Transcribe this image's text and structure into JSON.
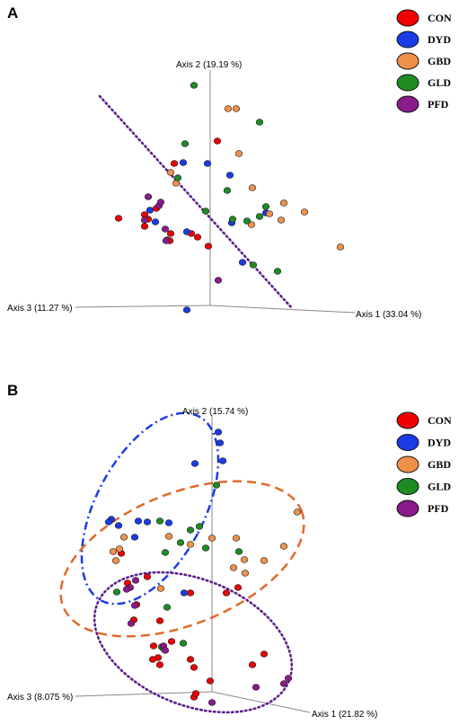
{
  "legend": [
    {
      "label": "CON",
      "color": "#f00000"
    },
    {
      "label": "DYD",
      "color": "#1a3be6"
    },
    {
      "label": "GBD",
      "color": "#f0914a"
    },
    {
      "label": "GLD",
      "color": "#1e8c23"
    },
    {
      "label": "PFD",
      "color": "#8b1a8b"
    }
  ],
  "chart_data": [
    {
      "panel": "A",
      "type": "scatter",
      "projection": "3d",
      "axes": {
        "axis1": "Axis 1 (33.04 %)",
        "axis2": "Axis 2 (19.19 %)",
        "axis3": "Axis 3 (11.27 %)"
      },
      "units": "projected plot units (x right, y up, origin at axes intersection)",
      "series": [
        {
          "name": "CON",
          "color": "#f00000",
          "points": [
            [
              -40,
              158
            ],
            [
              8,
              183
            ],
            [
              -102,
              97
            ],
            [
              -69,
              96
            ],
            [
              -60,
              108
            ],
            [
              -73,
              101
            ],
            [
              -73,
              88
            ],
            [
              -44,
              80
            ],
            [
              -48,
              73
            ],
            [
              -45,
              72
            ],
            [
              -21,
              80
            ],
            [
              -14,
              76
            ],
            [
              -2,
              66
            ]
          ]
        },
        {
          "name": "DYD",
          "color": "#1a3be6",
          "points": [
            [
              -30,
              159
            ],
            [
              -3,
              158
            ],
            [
              22,
              145
            ],
            [
              62,
              103
            ],
            [
              -26,
              82
            ],
            [
              -67,
              106
            ],
            [
              24,
              92
            ],
            [
              -61,
              93
            ],
            [
              36,
              48
            ],
            [
              -26,
              -5
            ]
          ]
        },
        {
          "name": "GBD",
          "color": "#f0914a",
          "points": [
            [
              20,
              219
            ],
            [
              29,
              219
            ],
            [
              -44,
              148
            ],
            [
              -38,
              136
            ],
            [
              32,
              169
            ],
            [
              47,
              131
            ],
            [
              82,
              114
            ],
            [
              66,
              102
            ],
            [
              46,
              90
            ],
            [
              105,
              104
            ],
            [
              79,
              95
            ],
            [
              145,
              65
            ]
          ]
        },
        {
          "name": "GLD",
          "color": "#1e8c23",
          "points": [
            [
              -18,
              245
            ],
            [
              55,
              204
            ],
            [
              -28,
              180
            ],
            [
              19,
              128
            ],
            [
              -36,
              142
            ],
            [
              -5,
              105
            ],
            [
              62,
              110
            ],
            [
              55,
              99
            ],
            [
              41,
              94
            ],
            [
              25,
              96
            ],
            [
              48,
              45
            ],
            [
              75,
              38
            ]
          ]
        },
        {
          "name": "PFD",
          "color": "#8b1a8b",
          "points": [
            [
              -69,
              121
            ],
            [
              -57,
              111
            ],
            [
              -55,
              115
            ],
            [
              -73,
              95
            ],
            [
              -50,
              85
            ],
            [
              -49,
              72
            ],
            [
              9,
              28
            ]
          ]
        }
      ],
      "separator_line": "dotted",
      "separator_color": "#5c1e8c"
    },
    {
      "panel": "B",
      "type": "scatter",
      "projection": "3d",
      "axes": {
        "axis1": "Axis 1 (21.82 %)",
        "axis2": "Axis 2 (15.74 %)",
        "axis3": "Axis 3 (8.075 %)"
      },
      "units": "projected plot units (x right, y up, origin at axes intersection)",
      "series": [
        {
          "name": "CON",
          "color": "#f00000",
          "points": [
            [
              -101,
              154
            ],
            [
              -72,
              128
            ],
            [
              -94,
              121
            ],
            [
              -84,
              97
            ],
            [
              -87,
              80
            ],
            [
              -24,
              110
            ],
            [
              -58,
              79
            ],
            [
              -45,
              56
            ],
            [
              -65,
              51
            ],
            [
              -60,
              38
            ],
            [
              -66,
              36
            ],
            [
              -58,
              30
            ],
            [
              -24,
              36
            ],
            [
              -20,
              27
            ],
            [
              -2,
              12
            ],
            [
              -20,
              -6
            ],
            [
              58,
              42
            ],
            [
              45,
              30
            ],
            [
              16,
              110
            ],
            [
              29,
              116
            ],
            [
              -18,
              -2
            ]
          ]
        },
        {
          "name": "DYD",
          "color": "#1a3be6",
          "points": [
            [
              7,
              289
            ],
            [
              9,
              277
            ],
            [
              12,
              257
            ],
            [
              -19,
              254
            ],
            [
              -112,
              192
            ],
            [
              -115,
              189
            ],
            [
              -104,
              185
            ],
            [
              -82,
              190
            ],
            [
              -72,
              189
            ],
            [
              -86,
              172
            ],
            [
              -48,
              188
            ],
            [
              -31,
              110
            ]
          ]
        },
        {
          "name": "GBD",
          "color": "#f0914a",
          "points": [
            [
              95,
              200
            ],
            [
              80,
              162
            ],
            [
              -48,
              173
            ],
            [
              -98,
              172
            ],
            [
              -103,
              159
            ],
            [
              -110,
              156
            ],
            [
              -107,
              146
            ],
            [
              -24,
              164
            ],
            [
              0,
              171
            ],
            [
              27,
              171
            ],
            [
              36,
              147
            ],
            [
              -57,
              115
            ],
            [
              24,
              138
            ],
            [
              58,
              146
            ],
            [
              37,
              132
            ]
          ]
        },
        {
          "name": "GLD",
          "color": "#1e8c23",
          "points": [
            [
              5,
              230
            ],
            [
              -58,
              190
            ],
            [
              -35,
              166
            ],
            [
              -24,
              180
            ],
            [
              -14,
              184
            ],
            [
              -52,
              155
            ],
            [
              -7,
              160
            ],
            [
              -32,
              54
            ],
            [
              -50,
              94
            ],
            [
              -106,
              111
            ],
            [
              -56,
              50
            ],
            [
              -54,
              48
            ],
            [
              30,
              156
            ]
          ]
        },
        {
          "name": "PFD",
          "color": "#8b1a8b",
          "points": [
            [
              -91,
              116
            ],
            [
              -95,
              114
            ],
            [
              -86,
              96
            ],
            [
              -90,
              76
            ],
            [
              -54,
              51
            ],
            [
              -52,
              46
            ],
            [
              0,
              -12
            ],
            [
              49,
              5
            ],
            [
              80,
              9
            ],
            [
              85,
              15
            ],
            [
              -85,
              124
            ]
          ]
        }
      ],
      "ellipses": [
        {
          "group": "DYD",
          "style": "dash-dot",
          "color": "#1a3be6"
        },
        {
          "group": "GBD",
          "style": "dashed",
          "color": "#e06a2a"
        },
        {
          "group": "PFD",
          "style": "dotted",
          "color": "#5c1e8c"
        }
      ]
    }
  ],
  "panel_labels": [
    "A",
    "B"
  ]
}
